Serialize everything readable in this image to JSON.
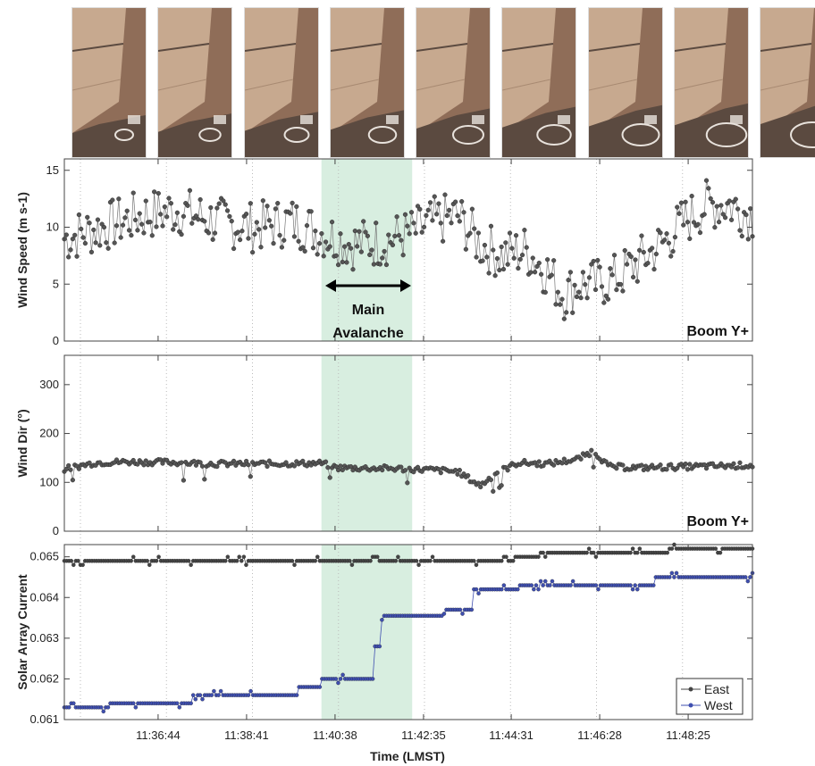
{
  "thumbnails": {
    "count": 9,
    "colors": {
      "sky": "#b98f73",
      "panel": "#c7a98f",
      "ground": "#8f6d58",
      "shadow": "#5b4a40",
      "hardware": "#e8e2dc"
    }
  },
  "highlight": {
    "color": "#d8eee0",
    "start": "11:40:20",
    "end": "11:42:20"
  },
  "annotation": {
    "line1": "Main",
    "line2": "Avalanche"
  },
  "chart_data": [
    {
      "type": "scatter",
      "ylabel": "Wind Speed (m s-1)",
      "ylim": [
        0,
        16
      ],
      "yticks": [
        0,
        5,
        10,
        15
      ],
      "panel_label": "Boom Y+",
      "color": "#555555",
      "trend": [
        [
          "11:34:40",
          9
        ],
        [
          "11:35:30",
          10
        ],
        [
          "11:36:20",
          11
        ],
        [
          "11:37:10",
          11.5
        ],
        [
          "11:38:00",
          10.5
        ],
        [
          "11:38:50",
          10
        ],
        [
          "11:39:40",
          10.5
        ],
        [
          "11:40:20",
          9.5
        ],
        [
          "11:41:00",
          8.5
        ],
        [
          "11:41:40",
          8.7
        ],
        [
          "11:42:20",
          9.5
        ],
        [
          "11:42:50",
          10.5
        ],
        [
          "11:43:20",
          11
        ],
        [
          "11:43:50",
          8.5
        ],
        [
          "11:44:20",
          7.5
        ],
        [
          "11:44:50",
          8
        ],
        [
          "11:45:20",
          6
        ],
        [
          "11:45:40",
          4
        ],
        [
          "11:46:00",
          5
        ],
        [
          "11:46:20",
          5
        ],
        [
          "11:46:50",
          5.5
        ],
        [
          "11:47:20",
          7
        ],
        [
          "11:47:50",
          8.5
        ],
        [
          "11:48:20",
          10.5
        ],
        [
          "11:48:50",
          12
        ],
        [
          "11:49:20",
          12
        ],
        [
          "11:49:50",
          11
        ]
      ]
    },
    {
      "type": "scatter",
      "ylabel": "Wind Dir (°)",
      "ylim": [
        0,
        360
      ],
      "yticks": [
        0,
        100,
        200,
        300
      ],
      "panel_label": "Boom Y+",
      "color": "#555555",
      "trend": [
        [
          "11:34:40",
          127
        ],
        [
          "11:35:20",
          140
        ],
        [
          "11:36:00",
          142
        ],
        [
          "11:37:00",
          141
        ],
        [
          "11:38:00",
          138
        ],
        [
          "11:39:00",
          138
        ],
        [
          "11:40:20",
          139
        ],
        [
          "11:40:40",
          130
        ],
        [
          "11:42:00",
          128
        ],
        [
          "11:42:40",
          126
        ],
        [
          "11:43:20",
          122
        ],
        [
          "11:43:50",
          93
        ],
        [
          "11:44:10",
          118
        ],
        [
          "11:44:40",
          140
        ],
        [
          "11:45:20",
          138
        ],
        [
          "11:46:00",
          148
        ],
        [
          "11:46:20",
          165
        ],
        [
          "11:46:40",
          132
        ],
        [
          "11:47:20",
          130
        ],
        [
          "11:48:20",
          132
        ],
        [
          "11:49:50",
          135
        ]
      ]
    },
    {
      "type": "line",
      "ylabel": "Solar Array Current",
      "ylim": [
        0.061,
        0.0653
      ],
      "yticks": [
        0.061,
        0.062,
        0.063,
        0.064,
        0.065
      ],
      "series": [
        {
          "name": "East",
          "color": "#444444",
          "steps": [
            [
              "11:34:40",
              0.0649
            ],
            [
              "11:44:20",
              0.065
            ],
            [
              "11:45:10",
              0.0651
            ],
            [
              "11:48:00",
              0.0652
            ],
            [
              "11:49:50",
              0.0652
            ]
          ]
        },
        {
          "name": "West",
          "color": "#3f4fb0",
          "steps": [
            [
              "11:34:40",
              0.0613
            ],
            [
              "11:35:40",
              0.0614
            ],
            [
              "11:37:30",
              0.0616
            ],
            [
              "11:39:50",
              0.0618
            ],
            [
              "11:40:20",
              0.062
            ],
            [
              "11:41:20",
              0.062
            ],
            [
              "11:41:30",
              0.0628
            ],
            [
              "11:41:40",
              0.06355
            ],
            [
              "11:43:00",
              0.0637
            ],
            [
              "11:43:40",
              0.0642
            ],
            [
              "11:44:40",
              0.0643
            ],
            [
              "11:46:00",
              0.0643
            ],
            [
              "11:47:40",
              0.0645
            ],
            [
              "11:49:50",
              0.0646
            ]
          ]
        }
      ]
    }
  ],
  "xaxis": {
    "label": "Time (LMST)",
    "min": "11:34:40",
    "max": "11:49:50",
    "ticks": [
      "11:36:44",
      "11:38:41",
      "11:40:38",
      "11:42:35",
      "11:44:31",
      "11:46:28",
      "11:48:25"
    ]
  },
  "legend": {
    "east": "East",
    "west": "West"
  }
}
